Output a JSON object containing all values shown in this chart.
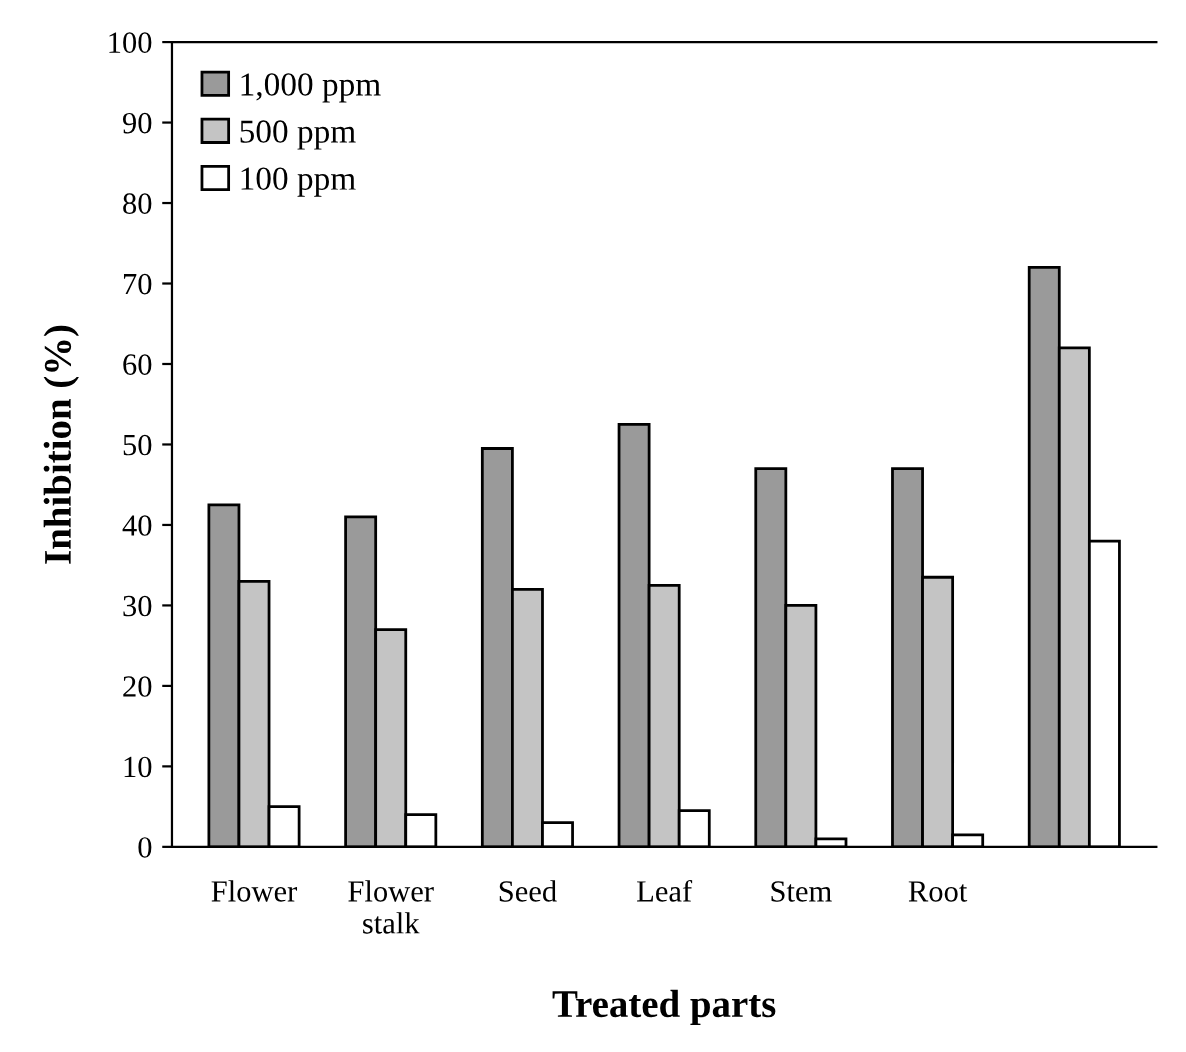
{
  "chart_data": {
    "type": "bar",
    "xlabel": "Treated parts",
    "ylabel": "Inhibition (%)",
    "categories": [
      "Flower",
      "Flower\nstalk",
      "Seed",
      "Leaf",
      "Stem",
      "Root",
      null
    ],
    "series": [
      {
        "name": "1,000 ppm",
        "color": "#9a9a9a",
        "values": [
          42.5,
          41,
          49.5,
          52.5,
          47,
          47,
          72
        ]
      },
      {
        "name": "500 ppm",
        "color": "#c4c4c4",
        "values": [
          33,
          27,
          32,
          32.5,
          30,
          33.5,
          62
        ]
      },
      {
        "name": "100 ppm",
        "color": "#ffffff",
        "values": [
          5,
          4,
          3,
          4.5,
          1,
          1.5,
          38
        ]
      }
    ],
    "ylim": [
      0,
      100
    ],
    "yticks": [
      0,
      10,
      20,
      30,
      40,
      50,
      60,
      70,
      80,
      90,
      100
    ],
    "grid": false,
    "legend": "top left"
  }
}
